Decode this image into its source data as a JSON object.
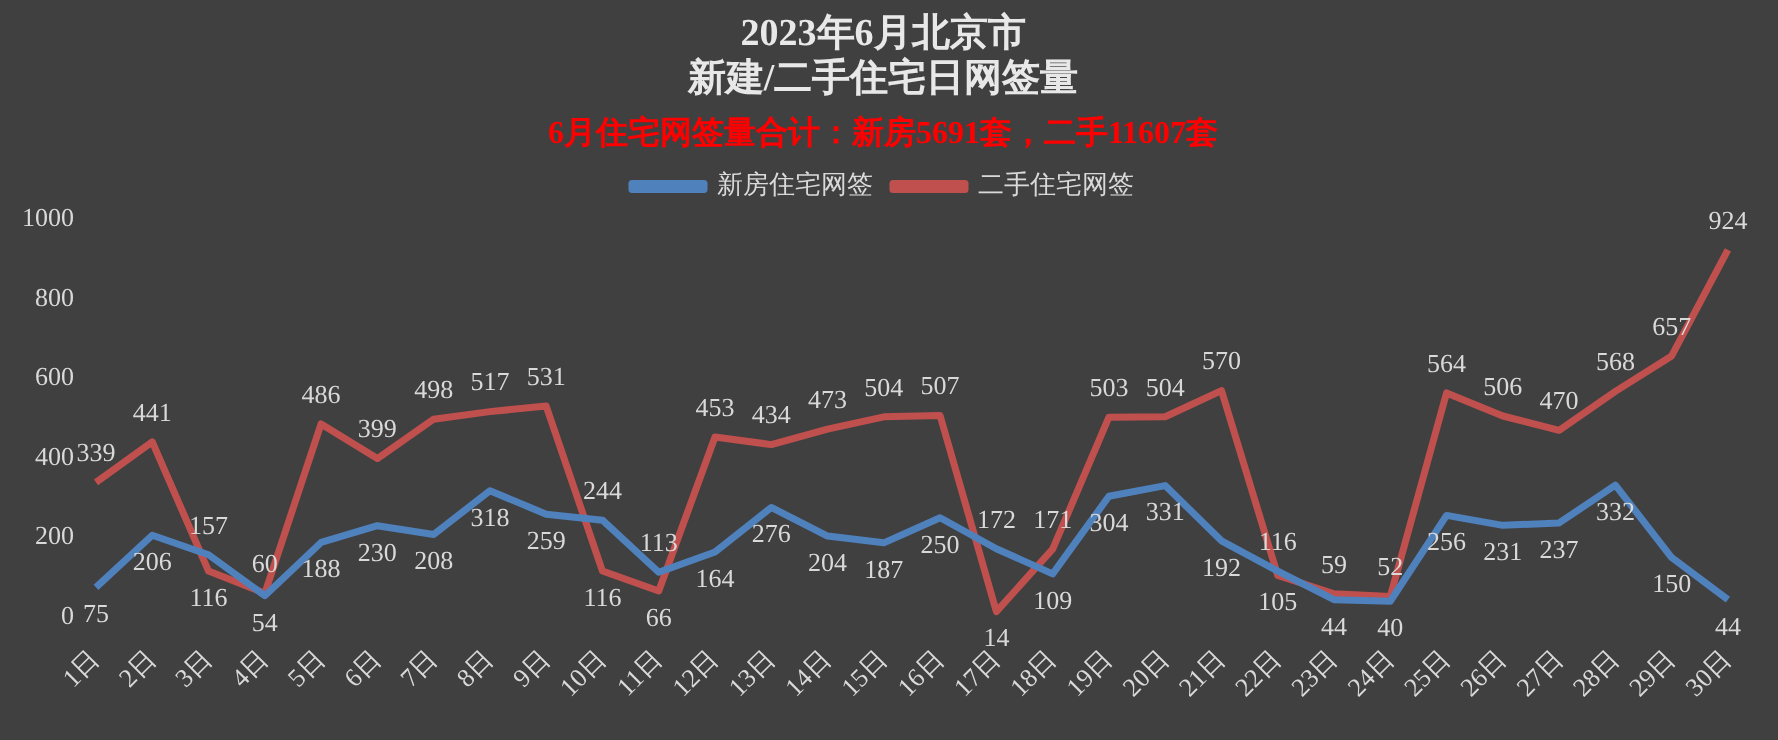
{
  "chart_data": {
    "type": "line",
    "title": "2023年6月北京市",
    "subtitle": "新建/二手住宅日网签量",
    "annotations": [
      "6月住宅网签量合计：新房5691套，二手11607套"
    ],
    "categories": [
      "1日",
      "2日",
      "3日",
      "4日",
      "5日",
      "6日",
      "7日",
      "8日",
      "9日",
      "10日",
      "11日",
      "12日",
      "13日",
      "14日",
      "15日",
      "16日",
      "17日",
      "18日",
      "19日",
      "20日",
      "21日",
      "22日",
      "23日",
      "24日",
      "25日",
      "26日",
      "27日",
      "28日",
      "29日",
      "30日"
    ],
    "series": [
      {
        "name": "新房住宅网签",
        "color": "#4f81bd",
        "values": [
          75,
          206,
          157,
          54,
          188,
          230,
          208,
          318,
          259,
          244,
          113,
          164,
          276,
          204,
          187,
          250,
          172,
          109,
          304,
          331,
          192,
          116,
          44,
          40,
          256,
          231,
          237,
          332,
          150,
          44
        ]
      },
      {
        "name": "二手住宅网签",
        "color": "#c0504d",
        "values": [
          339,
          441,
          116,
          60,
          486,
          399,
          498,
          517,
          531,
          116,
          66,
          453,
          434,
          473,
          504,
          507,
          14,
          171,
          503,
          504,
          570,
          105,
          59,
          52,
          564,
          506,
          470,
          568,
          657,
          924
        ]
      }
    ],
    "ylim": [
      0,
      1000
    ],
    "yticks": [
      0,
      200,
      400,
      600,
      800,
      {
        "value": 1000,
        "label": "1000"
      }
    ],
    "grid": false,
    "legend": "top",
    "marker": "none",
    "line_style": "solid",
    "data_labels": true
  }
}
